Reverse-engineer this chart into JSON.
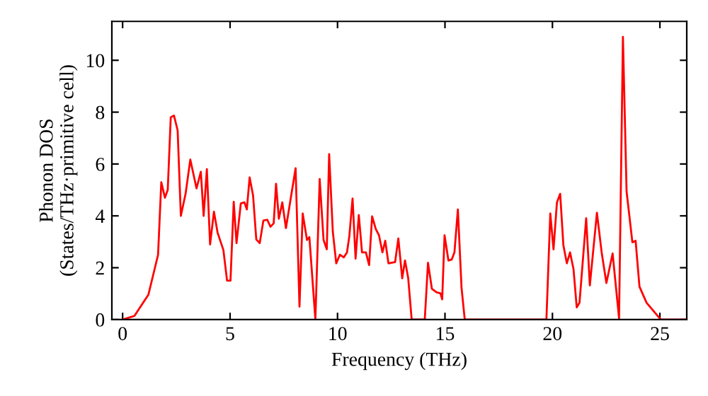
{
  "chart_data": {
    "type": "line",
    "xlabel": "Frequency (THz)",
    "ylabel": "Phonon DOS\n(States/THz·primitive cell)",
    "xlim": [
      -0.5,
      26.25
    ],
    "ylim": [
      0,
      11.5
    ],
    "xticks": [
      0,
      5,
      10,
      15,
      20,
      25
    ],
    "yticks": [
      0,
      2,
      4,
      6,
      8,
      10
    ],
    "grid": false,
    "series": [
      {
        "color": "#ff0000",
        "x": [
          0,
          0.55,
          1.2,
          1.65,
          1.8,
          1.97,
          2.1,
          2.24,
          2.39,
          2.56,
          2.71,
          2.93,
          3.15,
          3.44,
          3.64,
          3.77,
          3.92,
          4.07,
          4.25,
          4.42,
          4.69,
          4.86,
          5.02,
          5.17,
          5.3,
          5.5,
          5.67,
          5.78,
          5.91,
          6.07,
          6.22,
          6.38,
          6.55,
          6.73,
          6.88,
          7.03,
          7.14,
          7.27,
          7.43,
          7.6,
          8.05,
          8.23,
          8.38,
          8.58,
          8.69,
          8.97,
          9.17,
          9.35,
          9.5,
          9.61,
          9.78,
          9.94,
          10.11,
          10.29,
          10.44,
          10.55,
          10.7,
          10.84,
          10.99,
          11.14,
          11.32,
          11.47,
          11.61,
          11.78,
          11.93,
          12.09,
          12.22,
          12.37,
          12.68,
          12.83,
          13.01,
          13.14,
          13.29,
          13.45,
          14.06,
          14.21,
          14.39,
          14.61,
          14.79,
          14.87,
          14.98,
          15.16,
          15.31,
          15.44,
          15.6,
          15.77,
          15.92,
          19.72,
          19.9,
          20.05,
          20.21,
          20.36,
          20.51,
          20.67,
          20.82,
          20.98,
          21.13,
          21.26,
          21.57,
          21.74,
          22.07,
          22.29,
          22.51,
          22.8,
          23.1,
          23.28,
          23.45,
          23.72,
          23.87,
          24.05,
          24.38,
          25.04,
          26.25
        ],
        "values": [
          0,
          0.14,
          0.96,
          2.5,
          5.3,
          4.7,
          5.0,
          7.8,
          7.87,
          7.3,
          4.0,
          4.85,
          6.17,
          5.06,
          5.7,
          4.0,
          5.8,
          2.9,
          4.16,
          3.35,
          2.68,
          1.5,
          1.5,
          4.54,
          2.95,
          4.48,
          4.52,
          4.25,
          5.48,
          4.79,
          3.09,
          2.95,
          3.82,
          3.85,
          3.58,
          3.71,
          5.24,
          3.89,
          4.52,
          3.53,
          5.84,
          0.5,
          4.09,
          3.07,
          3.18,
          0,
          5.42,
          3.07,
          2.71,
          6.38,
          3.4,
          2.17,
          2.5,
          2.4,
          2.59,
          3.22,
          4.67,
          2.35,
          4.03,
          2.59,
          2.59,
          2.1,
          3.98,
          3.49,
          3.25,
          2.59,
          3.04,
          2.17,
          2.22,
          3.13,
          1.59,
          2.28,
          1.59,
          0,
          0,
          2.19,
          1.19,
          1.05,
          1.01,
          0.78,
          3.25,
          2.28,
          2.31,
          2.59,
          4.25,
          1.23,
          0,
          0,
          4.09,
          2.71,
          4.52,
          4.85,
          2.86,
          2.17,
          2.59,
          1.95,
          0.47,
          0.65,
          3.91,
          1.32,
          4.12,
          2.59,
          1.41,
          2.55,
          0.05,
          10.9,
          4.94,
          2.98,
          3.04,
          1.27,
          0.65,
          0,
          0
        ]
      }
    ]
  }
}
